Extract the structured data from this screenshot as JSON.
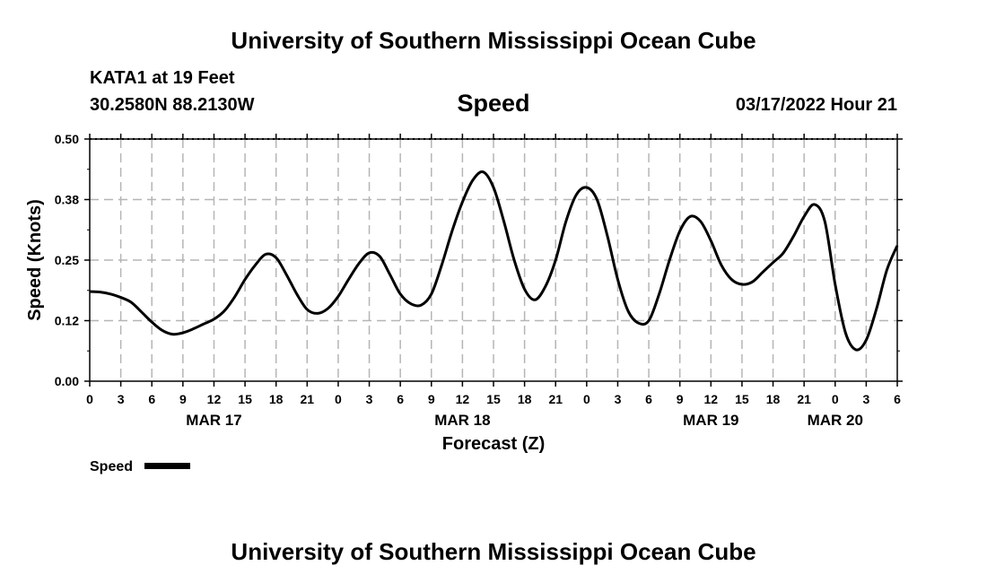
{
  "header": {
    "title": "University of Southern Mississippi Ocean Cube",
    "station": "KATA1 at 19 Feet",
    "coordinates": "30.2580N  88.2130W",
    "timestamp": "03/17/2022 Hour 21"
  },
  "footer": {
    "title": "University of Southern Mississippi Ocean Cube"
  },
  "chart_data": {
    "type": "line",
    "title": "Speed",
    "xlabel": "Forecast (Z)",
    "ylabel": "Speed (Knots)",
    "xlim": [
      0,
      78
    ],
    "ylim": [
      0,
      0.5
    ],
    "x_unit": "hours from MAR 17 00Z",
    "y_ticks": [
      0.0,
      0.125,
      0.25,
      0.375,
      0.5
    ],
    "y_tick_labels": [
      "0.00",
      "0.12",
      "0.25",
      "0.38",
      "0.50"
    ],
    "x_ticks": [
      0,
      3,
      6,
      9,
      12,
      15,
      18,
      21,
      24,
      27,
      30,
      33,
      36,
      39,
      42,
      45,
      48,
      51,
      54,
      57,
      60,
      63,
      66,
      69,
      72,
      75,
      78
    ],
    "x_tick_labels": [
      "0",
      "3",
      "6",
      "9",
      "12",
      "15",
      "18",
      "21",
      "0",
      "3",
      "6",
      "9",
      "12",
      "15",
      "18",
      "21",
      "0",
      "3",
      "6",
      "9",
      "12",
      "15",
      "18",
      "21",
      "0",
      "3",
      "6"
    ],
    "date_labels": [
      {
        "label": "MAR 17",
        "hour": 12
      },
      {
        "label": "MAR 18",
        "hour": 36
      },
      {
        "label": "MAR 19",
        "hour": 60
      },
      {
        "label": "MAR 20",
        "hour": 72
      }
    ],
    "grid": true,
    "legend": "bottom-left",
    "series": [
      {
        "name": "Speed",
        "color": "#000000",
        "x": [
          0,
          1,
          2,
          3,
          4,
          5,
          6,
          7,
          8,
          9,
          10,
          11,
          12,
          13,
          14,
          15,
          16,
          17,
          18,
          19,
          20,
          21,
          22,
          23,
          24,
          25,
          26,
          27,
          28,
          29,
          30,
          31,
          32,
          33,
          34,
          35,
          36,
          37,
          38,
          39,
          40,
          41,
          42,
          43,
          44,
          45,
          46,
          47,
          48,
          49,
          50,
          51,
          52,
          53,
          54,
          55,
          56,
          57,
          58,
          59,
          60,
          61,
          62,
          63,
          64,
          65,
          66,
          67,
          68,
          69,
          70,
          71,
          72,
          73,
          74,
          75,
          76,
          77,
          78
        ],
        "values": [
          0.185,
          0.184,
          0.18,
          0.173,
          0.163,
          0.143,
          0.122,
          0.105,
          0.097,
          0.1,
          0.108,
          0.118,
          0.128,
          0.145,
          0.174,
          0.21,
          0.24,
          0.262,
          0.255,
          0.22,
          0.18,
          0.148,
          0.14,
          0.15,
          0.175,
          0.21,
          0.243,
          0.265,
          0.258,
          0.22,
          0.18,
          0.16,
          0.157,
          0.18,
          0.24,
          0.31,
          0.37,
          0.415,
          0.432,
          0.4,
          0.33,
          0.25,
          0.19,
          0.168,
          0.195,
          0.25,
          0.33,
          0.385,
          0.4,
          0.375,
          0.3,
          0.21,
          0.145,
          0.12,
          0.125,
          0.18,
          0.25,
          0.31,
          0.34,
          0.33,
          0.29,
          0.24,
          0.21,
          0.2,
          0.205,
          0.225,
          0.245,
          0.265,
          0.3,
          0.34,
          0.365,
          0.33,
          0.2,
          0.1,
          0.065,
          0.085,
          0.15,
          0.23,
          0.28
        ]
      }
    ]
  }
}
